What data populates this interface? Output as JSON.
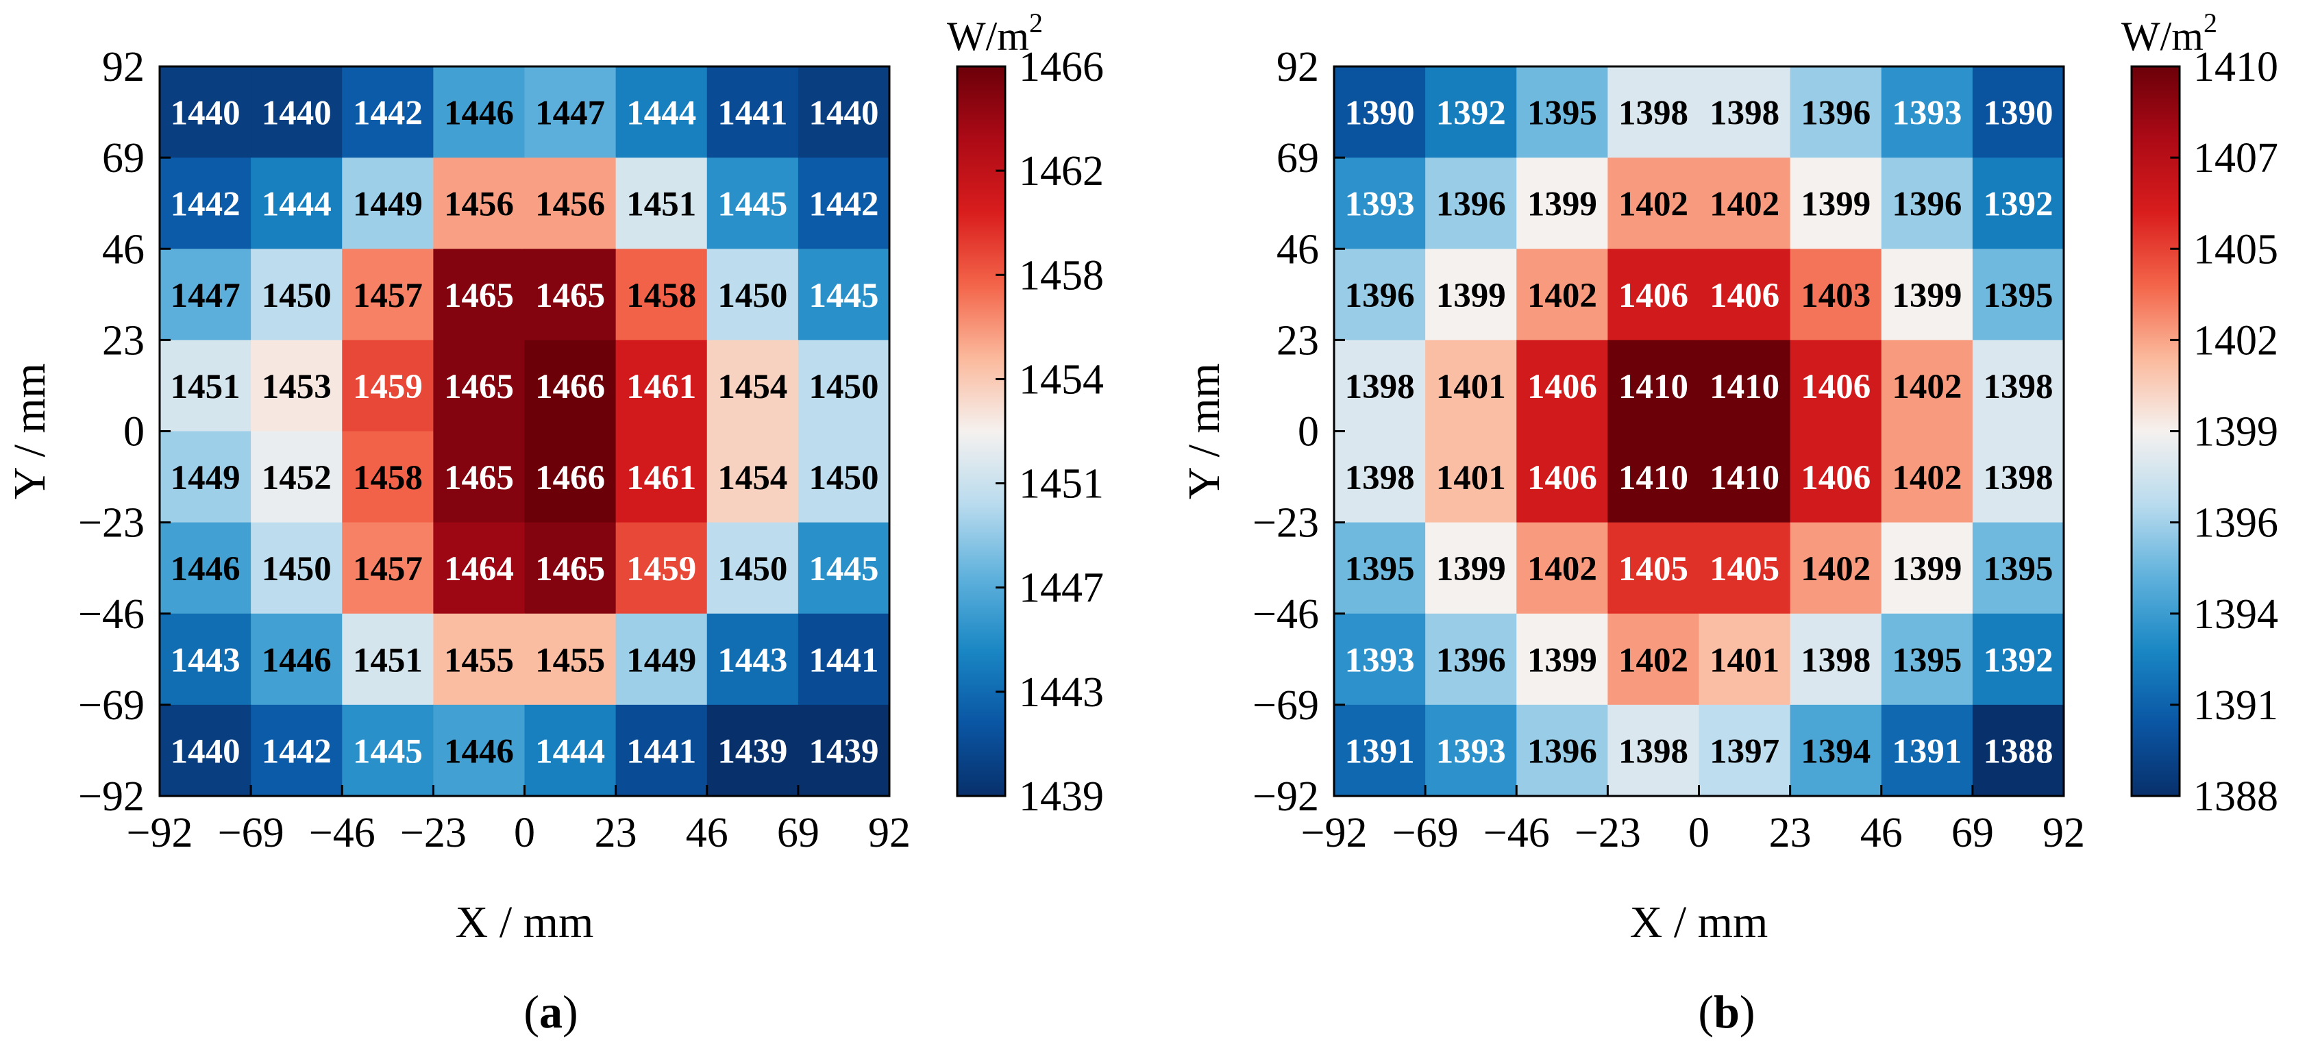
{
  "chart_data": [
    {
      "type": "heatmap",
      "panel_label": "a",
      "x_ticks": [
        "−92",
        "−69",
        "−46",
        "−23",
        "0",
        "23",
        "46",
        "69",
        "92"
      ],
      "y_ticks": [
        "92",
        "69",
        "46",
        "23",
        "0",
        "−23",
        "−46",
        "−69",
        "−92"
      ],
      "xlim": [
        -92,
        92
      ],
      "ylim": [
        -92,
        92
      ],
      "xlabel": "X / mm",
      "ylabel": "Y / mm",
      "colorbar": {
        "unit": "W/m",
        "unit_sup": "2",
        "min": 1439,
        "max": 1466,
        "ticks": [
          "1466",
          "1462",
          "1458",
          "1454",
          "1451",
          "1447",
          "1443",
          "1439"
        ]
      },
      "values": [
        [
          1440,
          1440,
          1442,
          1446,
          1447,
          1444,
          1441,
          1440
        ],
        [
          1442,
          1444,
          1449,
          1456,
          1456,
          1451,
          1445,
          1442
        ],
        [
          1447,
          1450,
          1457,
          1465,
          1465,
          1458,
          1450,
          1445
        ],
        [
          1451,
          1453,
          1459,
          1465,
          1466,
          1461,
          1454,
          1450
        ],
        [
          1449,
          1452,
          1458,
          1465,
          1466,
          1461,
          1454,
          1450
        ],
        [
          1446,
          1450,
          1457,
          1464,
          1465,
          1459,
          1450,
          1445
        ],
        [
          1443,
          1446,
          1451,
          1455,
          1455,
          1449,
          1443,
          1441
        ],
        [
          1440,
          1442,
          1445,
          1446,
          1444,
          1441,
          1439,
          1439
        ]
      ]
    },
    {
      "type": "heatmap",
      "panel_label": "b",
      "x_ticks": [
        "−92",
        "−69",
        "−46",
        "−23",
        "0",
        "23",
        "46",
        "69",
        "92"
      ],
      "y_ticks": [
        "92",
        "69",
        "46",
        "23",
        "0",
        "−23",
        "−46",
        "−69",
        "−92"
      ],
      "xlim": [
        -92,
        92
      ],
      "ylim": [
        -92,
        92
      ],
      "xlabel": "X / mm",
      "ylabel": "Y / mm",
      "colorbar": {
        "unit": "W/m",
        "unit_sup": "2",
        "min": 1388,
        "max": 1410,
        "ticks": [
          "1410",
          "1407",
          "1405",
          "1402",
          "1399",
          "1396",
          "1394",
          "1391",
          "1388"
        ]
      },
      "values": [
        [
          1390,
          1392,
          1395,
          1398,
          1398,
          1396,
          1393,
          1390
        ],
        [
          1393,
          1396,
          1399,
          1402,
          1402,
          1399,
          1396,
          1392
        ],
        [
          1396,
          1399,
          1402,
          1406,
          1406,
          1403,
          1399,
          1395
        ],
        [
          1398,
          1401,
          1406,
          1410,
          1410,
          1406,
          1402,
          1398
        ],
        [
          1398,
          1401,
          1406,
          1410,
          1410,
          1406,
          1402,
          1398
        ],
        [
          1395,
          1399,
          1402,
          1405,
          1405,
          1402,
          1399,
          1395
        ],
        [
          1393,
          1396,
          1399,
          1402,
          1401,
          1398,
          1395,
          1392
        ],
        [
          1391,
          1393,
          1396,
          1398,
          1397,
          1394,
          1391,
          1388
        ]
      ]
    }
  ],
  "colormap": {
    "stops": [
      "#08306b",
      "#0a56a4",
      "#1a87c4",
      "#5fb1dc",
      "#b9dbee",
      "#f5f1ef",
      "#fbb99c",
      "#f3654a",
      "#d91d1d",
      "#ad0a16",
      "#6b0009"
    ]
  }
}
